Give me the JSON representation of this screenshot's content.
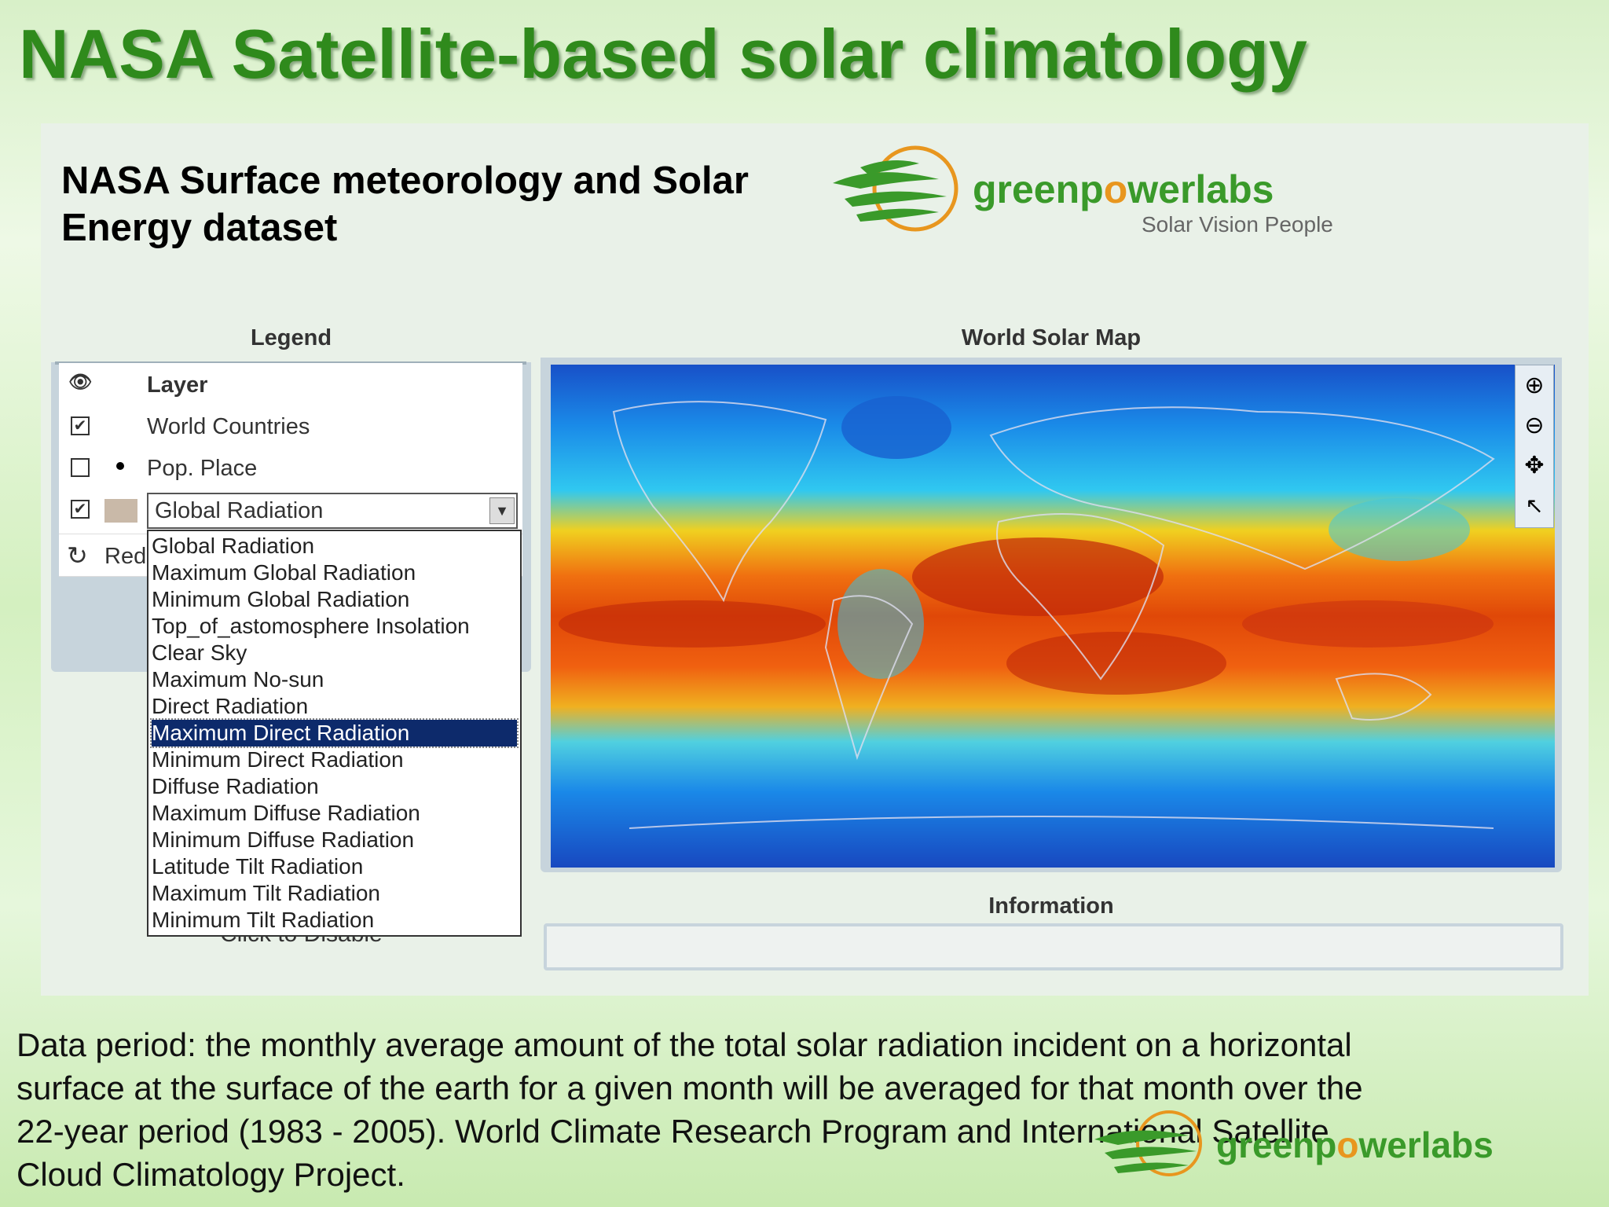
{
  "slide": {
    "title": "NASA Satellite-based solar climatology",
    "panel_heading": "NASA Surface meteorology and Solar Energy dataset",
    "logo": {
      "parts": [
        "greenp",
        "o",
        "werlabs"
      ],
      "tagline": "Solar Vision People"
    },
    "legend": {
      "title": "Legend",
      "header": "Layer",
      "rows": [
        "World Countries",
        "Pop. Place"
      ],
      "select_value": "Global Radiation",
      "redraw": "Redi",
      "hidden_note": "Click to Disable",
      "options": [
        "Global Radiation",
        "Maximum Global Radiation",
        "Minimum Global Radiation",
        "Top_of_astomosphere Insolation",
        "Clear Sky",
        "Maximum No-sun",
        "Direct Radiation",
        "Maximum Direct Radiation",
        "Minimum Direct Radiation",
        "Diffuse Radiation",
        "Maximum Diffuse Radiation",
        "Minimum Diffuse Radiation",
        "Latitude Tilt Radiation",
        "Maximum Tilt Radiation",
        "Minimum Tilt Radiation"
      ],
      "selected_option": 7
    },
    "map_title": "World Solar Map",
    "info_title": "Information",
    "footer": "Data period: the monthly average amount of the total solar radiation incident on a horizontal surface at the surface of the earth for a given month will be averaged for that month over the 22-year period (1983 - 2005). World Climate Research Program and International Satellite Cloud Climatology Project."
  }
}
